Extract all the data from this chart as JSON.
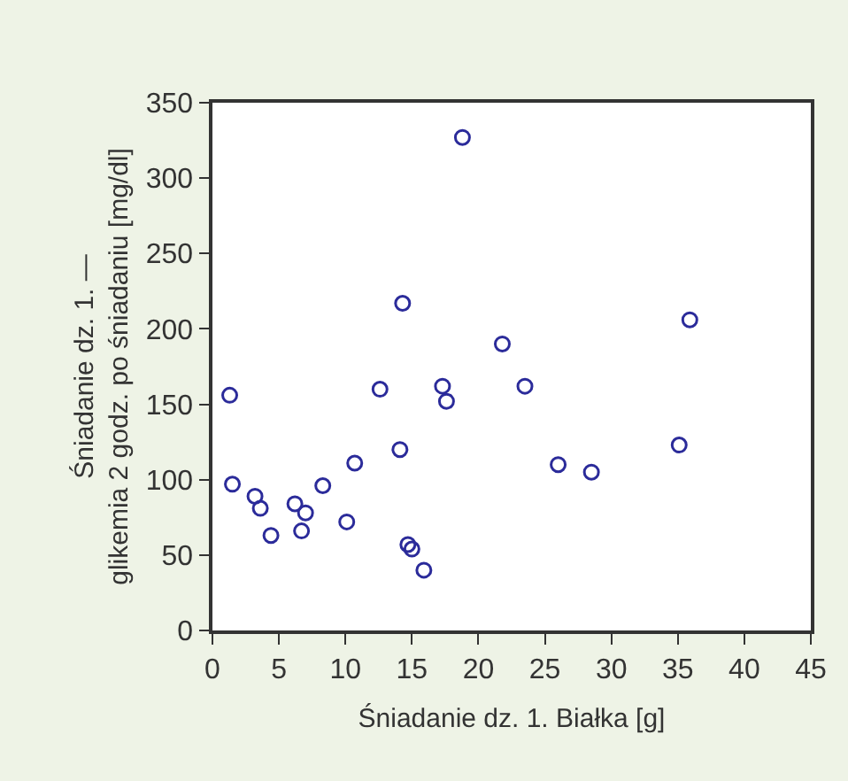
{
  "chart_data": {
    "type": "scatter",
    "xlabel": "Śniadanie dz. 1. Białka [g]",
    "ylabel": "Śniadanie dz. 1. —\nglikemia 2 godz. po śniadaniu [mg/dl]",
    "x": [
      1.3,
      1.5,
      3.2,
      3.6,
      4.4,
      6.2,
      6.7,
      7.0,
      8.3,
      10.1,
      10.7,
      12.6,
      14.1,
      14.3,
      14.7,
      15.0,
      15.9,
      17.3,
      17.6,
      18.8,
      21.8,
      23.5,
      26.0,
      28.5,
      35.1,
      35.9
    ],
    "series": [
      {
        "color": "#2b2b9a",
        "values": [
          156,
          97,
          89,
          81,
          63,
          84,
          66,
          78,
          96,
          72,
          111,
          160,
          120,
          217,
          57,
          54,
          40,
          162,
          152,
          327,
          190,
          162,
          110,
          105,
          123,
          206
        ]
      }
    ],
    "xlim": [
      0,
      45
    ],
    "xticks": [
      0,
      5,
      10,
      15,
      20,
      25,
      30,
      35,
      40,
      45
    ],
    "ylim": [
      0,
      350
    ],
    "yticks": [
      0,
      50,
      100,
      150,
      200,
      250,
      300,
      350
    ],
    "marker": "circle"
  }
}
